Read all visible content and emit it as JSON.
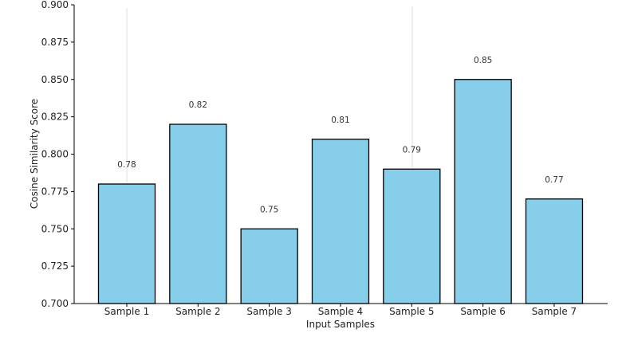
{
  "chart_data": {
    "type": "bar",
    "title": "",
    "xlabel": "Input Samples",
    "ylabel": "Cosine Similarity Score",
    "categories": [
      "Sample 1",
      "Sample 2",
      "Sample 3",
      "Sample 4",
      "Sample 5",
      "Sample 6",
      "Sample 7"
    ],
    "values": [
      0.78,
      0.82,
      0.75,
      0.81,
      0.79,
      0.85,
      0.77
    ],
    "data_labels": [
      "0.78",
      "0.82",
      "0.75",
      "0.81",
      "0.79",
      "0.85",
      "0.77"
    ],
    "ylim": [
      0.7,
      0.9
    ],
    "yticks": [
      0.7,
      0.725,
      0.75,
      0.775,
      0.8,
      0.825,
      0.85,
      0.875,
      0.9
    ],
    "ytick_labels": [
      "0.700",
      "0.725",
      "0.750",
      "0.775",
      "0.800",
      "0.825",
      "0.850",
      "0.875",
      "0.900"
    ],
    "grid": false,
    "bar_color": "#87ceeb",
    "edge_color": "#000000"
  }
}
